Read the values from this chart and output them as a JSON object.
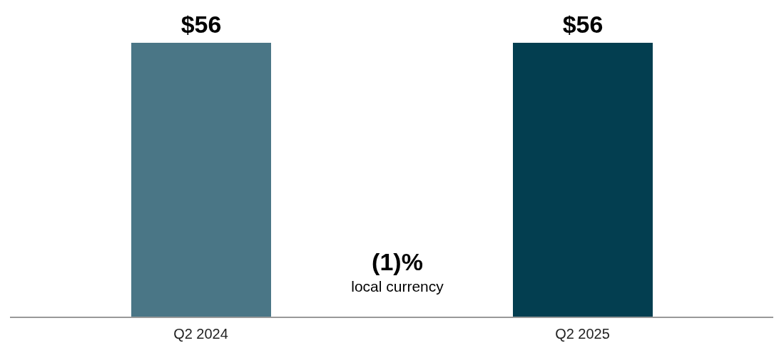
{
  "chart_data": {
    "type": "bar",
    "categories": [
      "Q2 2024",
      "Q2 2025"
    ],
    "values": [
      56,
      56
    ],
    "colors": [
      "#4a7686",
      "#033e50"
    ],
    "value_labels": [
      "$56",
      "$56"
    ],
    "annotations": [
      "(1)%",
      "local currency"
    ],
    "grid": false,
    "legend": false
  }
}
